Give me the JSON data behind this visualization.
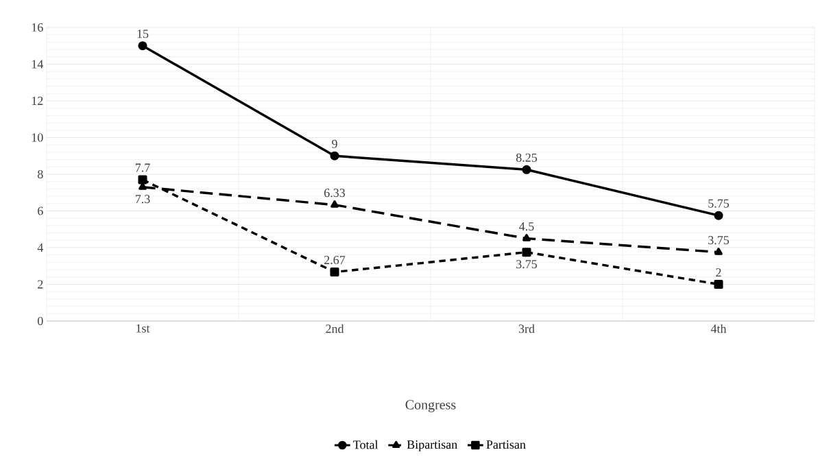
{
  "chart_data": {
    "type": "line",
    "xlabel": "Congress",
    "categories": [
      "1st",
      "2nd",
      "3rd",
      "4th"
    ],
    "series": [
      {
        "name": "Total",
        "color": "#000000",
        "values": [
          15,
          9,
          8.25,
          5.75
        ],
        "marker": "circle",
        "line_style": "solid"
      },
      {
        "name": "Bipartisan",
        "color": "#000000",
        "values": [
          7.3,
          6.33,
          4.5,
          3.75
        ],
        "marker": "triangle",
        "line_style": "dashed"
      },
      {
        "name": "Partisan",
        "color": "#000000",
        "values": [
          7.7,
          2.67,
          3.75,
          2
        ],
        "marker": "square",
        "line_style": "dashed"
      }
    ],
    "ylim": [
      0,
      16
    ],
    "yticks": [
      0,
      2,
      4,
      6,
      8,
      10,
      12,
      14,
      16
    ],
    "grid": true,
    "legend": "bottom",
    "data_labels": true
  }
}
